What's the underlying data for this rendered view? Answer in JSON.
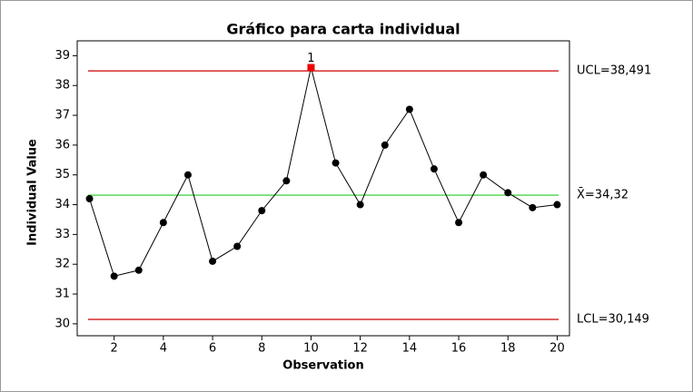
{
  "chart_data": {
    "type": "line",
    "title": "Gráfico para carta individual",
    "x_label": "Observation",
    "y_label": "Individual Value",
    "x": [
      1,
      2,
      3,
      4,
      5,
      6,
      7,
      8,
      9,
      10,
      11,
      12,
      13,
      14,
      15,
      16,
      17,
      18,
      19,
      20
    ],
    "series": [
      {
        "color": "#000000",
        "values": [
          34.2,
          31.6,
          31.8,
          33.4,
          35.0,
          32.1,
          32.6,
          33.8,
          34.8,
          38.6,
          35.4,
          34.0,
          36.0,
          37.2,
          35.2,
          33.4,
          35.0,
          34.4,
          33.9,
          34.0
        ]
      }
    ],
    "xlim": [
      0.5,
      20.5
    ],
    "xticks": [
      2,
      4,
      6,
      8,
      10,
      12,
      14,
      16,
      18,
      20
    ],
    "ylim": [
      29.6,
      39.5
    ],
    "yticks": [
      30,
      31,
      32,
      33,
      34,
      35,
      36,
      37,
      38,
      39
    ],
    "control_lines": [
      {
        "value": 38.491,
        "label": "UCL=38,491",
        "color": "#cc0000"
      },
      {
        "value": 34.32,
        "label": "X̄=34,32",
        "color": "#22cc22"
      },
      {
        "value": 30.149,
        "label": "LCL=30,149",
        "color": "#cc0000"
      }
    ],
    "out_of_control_color": "#ee0000",
    "annotations": [
      {
        "x": 10,
        "text": "1"
      }
    ]
  }
}
